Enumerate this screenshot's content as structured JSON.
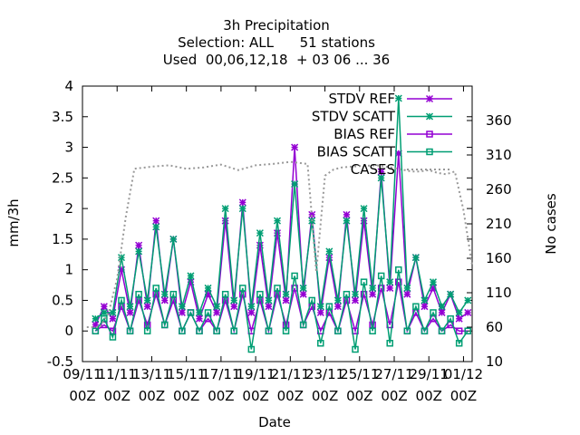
{
  "chart_data": {
    "type": "line",
    "title_lines": [
      "3h Precipitation",
      "Selection: ALL      51 stations",
      "Used  00,06,12,18  + 03 06 ... 36"
    ],
    "xlabel": "Date",
    "ylabel": "mm/3h",
    "y2label": "No cases",
    "xlim": [
      "2023-11-09T00:00",
      "2023-12-01T12:00"
    ],
    "ylim": [
      -0.5,
      4
    ],
    "y2lim": [
      10,
      410
    ],
    "x_ticks": [
      {
        "t": "2023-11-09T00:00",
        "label1": "09/11",
        "label2": "00Z"
      },
      {
        "t": "2023-11-11T00:00",
        "label1": "11/11",
        "label2": "00Z"
      },
      {
        "t": "2023-11-13T00:00",
        "label1": "13/11",
        "label2": "00Z"
      },
      {
        "t": "2023-11-15T00:00",
        "label1": "15/11",
        "label2": "00Z"
      },
      {
        "t": "2023-11-17T00:00",
        "label1": "17/11",
        "label2": "00Z"
      },
      {
        "t": "2023-11-19T00:00",
        "label1": "19/11",
        "label2": "00Z"
      },
      {
        "t": "2023-11-21T00:00",
        "label1": "21/11",
        "label2": "00Z"
      },
      {
        "t": "2023-11-23T00:00",
        "label1": "23/11",
        "label2": "00Z"
      },
      {
        "t": "2023-11-25T00:00",
        "label1": "25/11",
        "label2": "00Z"
      },
      {
        "t": "2023-11-27T00:00",
        "label1": "27/11",
        "label2": "00Z"
      },
      {
        "t": "2023-11-29T00:00",
        "label1": "29/11",
        "label2": "00Z"
      },
      {
        "t": "2023-12-01T00:00",
        "label1": "01/12",
        "label2": "00Z"
      }
    ],
    "y_ticks": [
      {
        "v": -0.5,
        "label": "-0.5"
      },
      {
        "v": 0,
        "label": "0"
      },
      {
        "v": 0.5,
        "label": "0.5"
      },
      {
        "v": 1,
        "label": "1"
      },
      {
        "v": 1.5,
        "label": "1.5"
      },
      {
        "v": 2,
        "label": "2"
      },
      {
        "v": 2.5,
        "label": "2.5"
      },
      {
        "v": 3,
        "label": "3"
      },
      {
        "v": 3.5,
        "label": "3.5"
      },
      {
        "v": 4,
        "label": "4"
      }
    ],
    "y2_ticks": [
      {
        "v": 10,
        "label": "10"
      },
      {
        "v": 60,
        "label": "60"
      },
      {
        "v": 110,
        "label": "110"
      },
      {
        "v": 160,
        "label": "160"
      },
      {
        "v": 210,
        "label": "210"
      },
      {
        "v": 260,
        "label": "260"
      },
      {
        "v": 310,
        "label": "310"
      },
      {
        "v": 360,
        "label": "360"
      }
    ],
    "legend_position": "top-right",
    "series": [
      {
        "name": "STDV REF",
        "color": "#9400d3",
        "marker": "star",
        "axis": "y",
        "x": [
          "2023-11-09T18:00",
          "2023-11-10T06:00",
          "2023-11-10T18:00",
          "2023-11-11T06:00",
          "2023-11-11T18:00",
          "2023-11-12T06:00",
          "2023-11-12T18:00",
          "2023-11-13T06:00",
          "2023-11-13T18:00",
          "2023-11-14T06:00",
          "2023-11-14T18:00",
          "2023-11-15T06:00",
          "2023-11-15T18:00",
          "2023-11-16T06:00",
          "2023-11-16T18:00",
          "2023-11-17T06:00",
          "2023-11-17T18:00",
          "2023-11-18T06:00",
          "2023-11-18T18:00",
          "2023-11-19T06:00",
          "2023-11-19T18:00",
          "2023-11-20T06:00",
          "2023-11-20T18:00",
          "2023-11-21T06:00",
          "2023-11-21T18:00",
          "2023-11-22T06:00",
          "2023-11-22T18:00",
          "2023-11-23T06:00",
          "2023-11-23T18:00",
          "2023-11-24T06:00",
          "2023-11-24T18:00",
          "2023-11-25T06:00",
          "2023-11-25T18:00",
          "2023-11-26T06:00",
          "2023-11-26T18:00",
          "2023-11-27T06:00",
          "2023-11-27T18:00",
          "2023-11-28T06:00",
          "2023-11-28T18:00",
          "2023-11-29T06:00",
          "2023-11-29T18:00",
          "2023-11-30T06:00",
          "2023-11-30T18:00",
          "2023-12-01T06:00"
        ],
        "values": [
          0.1,
          0.4,
          0.2,
          1.0,
          0.3,
          1.4,
          0.4,
          1.8,
          0.5,
          1.5,
          0.3,
          0.8,
          0.2,
          0.6,
          0.3,
          1.8,
          0.4,
          2.1,
          0.3,
          1.4,
          0.4,
          1.6,
          0.5,
          3.0,
          0.6,
          1.9,
          0.3,
          1.2,
          0.4,
          1.9,
          0.5,
          1.8,
          0.6,
          2.6,
          0.7,
          2.9,
          0.6,
          1.2,
          0.4,
          0.7,
          0.3,
          0.6,
          0.2,
          0.3
        ]
      },
      {
        "name": "STDV SCATT",
        "color": "#009e73",
        "marker": "star",
        "axis": "y",
        "x": [
          "2023-11-09T18:00",
          "2023-11-10T06:00",
          "2023-11-10T18:00",
          "2023-11-11T06:00",
          "2023-11-11T18:00",
          "2023-11-12T06:00",
          "2023-11-12T18:00",
          "2023-11-13T06:00",
          "2023-11-13T18:00",
          "2023-11-14T06:00",
          "2023-11-14T18:00",
          "2023-11-15T06:00",
          "2023-11-15T18:00",
          "2023-11-16T06:00",
          "2023-11-16T18:00",
          "2023-11-17T06:00",
          "2023-11-17T18:00",
          "2023-11-18T06:00",
          "2023-11-18T18:00",
          "2023-11-19T06:00",
          "2023-11-19T18:00",
          "2023-11-20T06:00",
          "2023-11-20T18:00",
          "2023-11-21T06:00",
          "2023-11-21T18:00",
          "2023-11-22T06:00",
          "2023-11-22T18:00",
          "2023-11-23T06:00",
          "2023-11-23T18:00",
          "2023-11-24T06:00",
          "2023-11-24T18:00",
          "2023-11-25T06:00",
          "2023-11-25T18:00",
          "2023-11-26T06:00",
          "2023-11-26T18:00",
          "2023-11-27T06:00",
          "2023-11-27T18:00",
          "2023-11-28T06:00",
          "2023-11-28T18:00",
          "2023-11-29T06:00",
          "2023-11-29T18:00",
          "2023-11-30T06:00",
          "2023-11-30T18:00",
          "2023-12-01T06:00"
        ],
        "values": [
          0.2,
          0.3,
          0.3,
          1.2,
          0.4,
          1.3,
          0.5,
          1.7,
          0.6,
          1.5,
          0.4,
          0.9,
          0.3,
          0.7,
          0.4,
          2.0,
          0.5,
          2.0,
          0.4,
          1.6,
          0.5,
          1.8,
          0.6,
          2.4,
          0.7,
          1.8,
          0.4,
          1.3,
          0.5,
          1.8,
          0.6,
          2.0,
          0.7,
          2.5,
          0.8,
          3.8,
          0.7,
          1.2,
          0.5,
          0.8,
          0.4,
          0.6,
          0.3,
          0.5
        ]
      },
      {
        "name": "BIAS REF",
        "color": "#9400d3",
        "marker": "square",
        "axis": "y",
        "x": [
          "2023-11-09T18:00",
          "2023-11-10T06:00",
          "2023-11-10T18:00",
          "2023-11-11T06:00",
          "2023-11-11T18:00",
          "2023-11-12T06:00",
          "2023-11-12T18:00",
          "2023-11-13T06:00",
          "2023-11-13T18:00",
          "2023-11-14T06:00",
          "2023-11-14T18:00",
          "2023-11-15T06:00",
          "2023-11-15T18:00",
          "2023-11-16T06:00",
          "2023-11-16T18:00",
          "2023-11-17T06:00",
          "2023-11-17T18:00",
          "2023-11-18T06:00",
          "2023-11-18T18:00",
          "2023-11-19T06:00",
          "2023-11-19T18:00",
          "2023-11-20T06:00",
          "2023-11-20T18:00",
          "2023-11-21T06:00",
          "2023-11-21T18:00",
          "2023-11-22T06:00",
          "2023-11-22T18:00",
          "2023-11-23T06:00",
          "2023-11-23T18:00",
          "2023-11-24T06:00",
          "2023-11-24T18:00",
          "2023-11-25T06:00",
          "2023-11-25T18:00",
          "2023-11-26T06:00",
          "2023-11-26T18:00",
          "2023-11-27T06:00",
          "2023-11-27T18:00",
          "2023-11-28T06:00",
          "2023-11-28T18:00",
          "2023-11-29T06:00",
          "2023-11-29T18:00",
          "2023-11-30T06:00",
          "2023-11-30T18:00",
          "2023-12-01T06:00"
        ],
        "values": [
          0.0,
          0.1,
          0.0,
          0.4,
          0.0,
          0.5,
          0.1,
          0.6,
          0.1,
          0.5,
          0.0,
          0.3,
          0.0,
          0.2,
          0.0,
          0.5,
          0.0,
          0.6,
          0.0,
          0.5,
          0.0,
          0.6,
          0.1,
          0.7,
          0.1,
          0.4,
          0.0,
          0.3,
          0.0,
          0.5,
          0.0,
          0.6,
          0.1,
          0.7,
          0.1,
          0.8,
          0.0,
          0.3,
          0.0,
          0.2,
          0.0,
          0.1,
          0.0,
          0.0
        ]
      },
      {
        "name": "BIAS SCATT",
        "color": "#009e73",
        "marker": "square",
        "axis": "y",
        "x": [
          "2023-11-09T18:00",
          "2023-11-10T06:00",
          "2023-11-10T18:00",
          "2023-11-11T06:00",
          "2023-11-11T18:00",
          "2023-11-12T06:00",
          "2023-11-12T18:00",
          "2023-11-13T06:00",
          "2023-11-13T18:00",
          "2023-11-14T06:00",
          "2023-11-14T18:00",
          "2023-11-15T06:00",
          "2023-11-15T18:00",
          "2023-11-16T06:00",
          "2023-11-16T18:00",
          "2023-11-17T06:00",
          "2023-11-17T18:00",
          "2023-11-18T06:00",
          "2023-11-18T18:00",
          "2023-11-19T06:00",
          "2023-11-19T18:00",
          "2023-11-20T06:00",
          "2023-11-20T18:00",
          "2023-11-21T06:00",
          "2023-11-21T18:00",
          "2023-11-22T06:00",
          "2023-11-22T18:00",
          "2023-11-23T06:00",
          "2023-11-23T18:00",
          "2023-11-24T06:00",
          "2023-11-24T18:00",
          "2023-11-25T06:00",
          "2023-11-25T18:00",
          "2023-11-26T06:00",
          "2023-11-26T18:00",
          "2023-11-27T06:00",
          "2023-11-27T18:00",
          "2023-11-28T06:00",
          "2023-11-28T18:00",
          "2023-11-29T06:00",
          "2023-11-29T18:00",
          "2023-11-30T06:00",
          "2023-11-30T18:00",
          "2023-12-01T06:00"
        ],
        "values": [
          0.0,
          0.2,
          -0.1,
          0.5,
          0.0,
          0.6,
          0.0,
          0.7,
          0.1,
          0.6,
          0.0,
          0.3,
          0.0,
          0.3,
          0.0,
          0.6,
          0.0,
          0.7,
          -0.3,
          0.6,
          0.0,
          0.7,
          0.0,
          0.9,
          0.1,
          0.5,
          -0.2,
          0.4,
          0.0,
          0.6,
          -0.3,
          0.8,
          0.0,
          0.9,
          -0.2,
          1.0,
          0.0,
          0.4,
          0.0,
          0.3,
          0.0,
          0.2,
          -0.2,
          0.0
        ]
      },
      {
        "name": "CASES",
        "color": "#999999",
        "marker": "none",
        "dash": "dotted",
        "axis": "y2",
        "x": [
          "2023-11-09T06:00",
          "2023-11-10T00:00",
          "2023-11-10T12:00",
          "2023-11-11T00:00",
          "2023-11-11T12:00",
          "2023-11-12T00:00",
          "2023-11-13T00:00",
          "2023-11-14T00:00",
          "2023-11-15T00:00",
          "2023-11-16T00:00",
          "2023-11-17T00:00",
          "2023-11-18T00:00",
          "2023-11-19T00:00",
          "2023-11-20T00:00",
          "2023-11-21T00:00",
          "2023-11-22T00:00",
          "2023-11-22T12:00",
          "2023-11-23T00:00",
          "2023-11-23T12:00",
          "2023-11-24T00:00",
          "2023-11-25T00:00",
          "2023-11-26T00:00",
          "2023-11-27T00:00",
          "2023-11-28T00:00",
          "2023-11-28T12:00",
          "2023-11-29T00:00",
          "2023-11-29T12:00",
          "2023-11-30T00:00",
          "2023-11-30T12:00",
          "2023-12-01T00:00",
          "2023-12-01T12:00"
        ],
        "values": [
          60,
          60,
          80,
          130,
          220,
          290,
          293,
          295,
          290,
          292,
          296,
          288,
          295,
          297,
          300,
          297,
          140,
          280,
          289,
          292,
          294,
          295,
          291,
          286,
          286,
          288,
          284,
          282,
          286,
          230,
          150
        ]
      }
    ]
  }
}
